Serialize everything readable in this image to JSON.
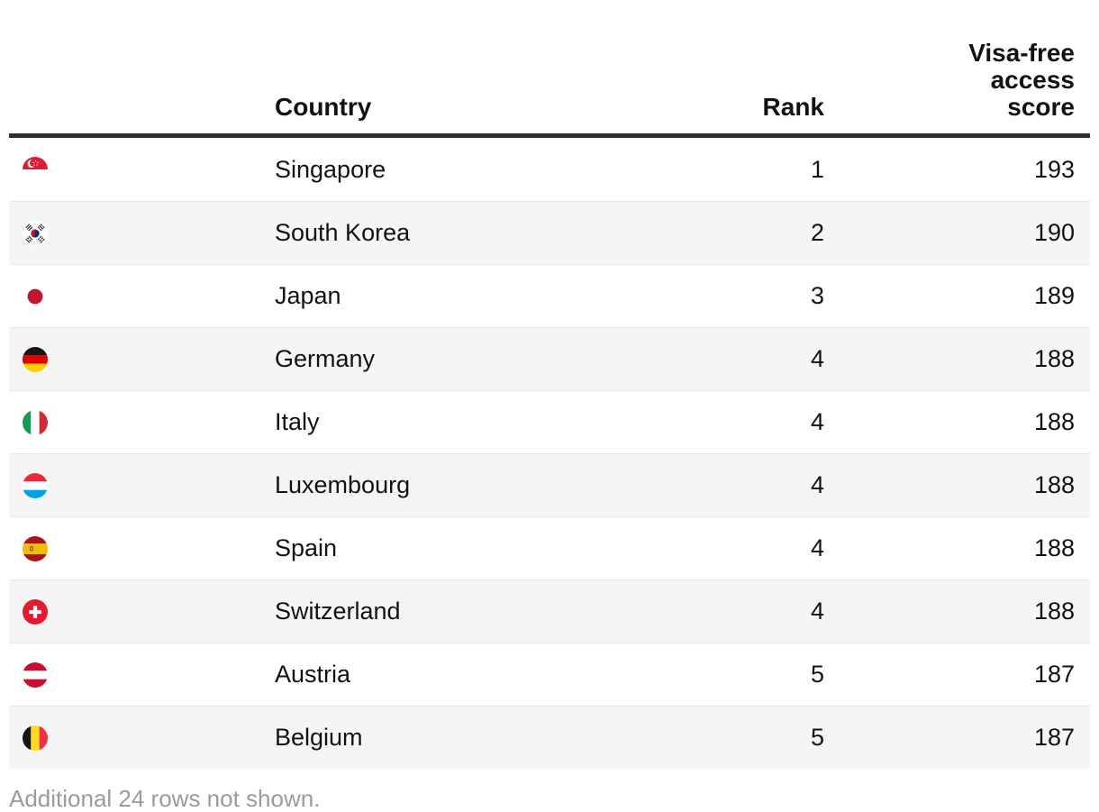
{
  "table": {
    "columns": {
      "flag": "",
      "country": "Country",
      "rank": "Rank",
      "score": "Visa-free access score"
    },
    "rows": [
      {
        "country": "Singapore",
        "rank": "1",
        "score": "193",
        "flag": "flag-singapore"
      },
      {
        "country": "South Korea",
        "rank": "2",
        "score": "190",
        "flag": "flag-south-korea"
      },
      {
        "country": "Japan",
        "rank": "3",
        "score": "189",
        "flag": "flag-japan"
      },
      {
        "country": "Germany",
        "rank": "4",
        "score": "188",
        "flag": "flag-germany"
      },
      {
        "country": "Italy",
        "rank": "4",
        "score": "188",
        "flag": "flag-italy"
      },
      {
        "country": "Luxembourg",
        "rank": "4",
        "score": "188",
        "flag": "flag-luxembourg"
      },
      {
        "country": "Spain",
        "rank": "4",
        "score": "188",
        "flag": "flag-spain"
      },
      {
        "country": "Switzerland",
        "rank": "4",
        "score": "188",
        "flag": "flag-switzerland"
      },
      {
        "country": "Austria",
        "rank": "5",
        "score": "187",
        "flag": "flag-austria"
      },
      {
        "country": "Belgium",
        "rank": "5",
        "score": "187",
        "flag": "flag-belgium"
      }
    ]
  },
  "footnote": {
    "text": "Additional 24 rows not shown."
  },
  "colors": {
    "header_rule": "#2e2e2e",
    "row_stripe": "#f5f5f5",
    "row_divider": "#e8e8e8",
    "text": "#121212",
    "footnote_text": "#9b9b9b"
  },
  "chart_data": {
    "type": "table",
    "title": "",
    "columns": [
      "Country",
      "Rank",
      "Visa-free access score"
    ],
    "rows": [
      [
        "Singapore",
        1,
        193
      ],
      [
        "South Korea",
        2,
        190
      ],
      [
        "Japan",
        3,
        189
      ],
      [
        "Germany",
        4,
        188
      ],
      [
        "Italy",
        4,
        188
      ],
      [
        "Luxembourg",
        4,
        188
      ],
      [
        "Spain",
        4,
        188
      ],
      [
        "Switzerland",
        4,
        188
      ],
      [
        "Austria",
        5,
        187
      ],
      [
        "Belgium",
        5,
        187
      ]
    ],
    "note": "Additional 24 rows not shown.",
    "layout_hints": {
      "zebra_striping": true,
      "rank_and_score_right_aligned": true,
      "flag_icons_first_column": true
    }
  }
}
